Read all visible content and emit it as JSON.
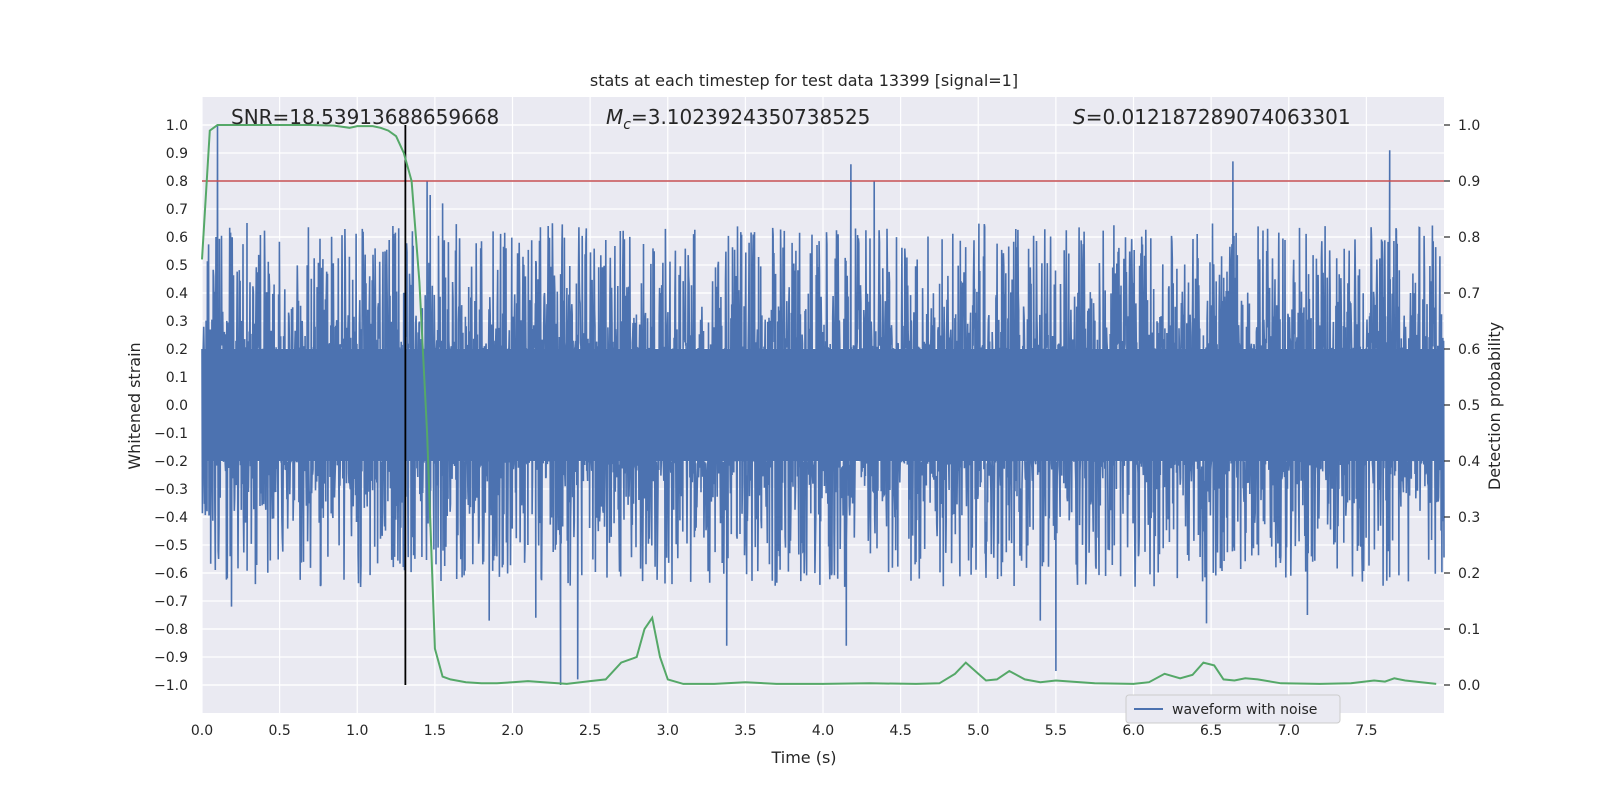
{
  "chart_data": {
    "type": "line",
    "title": "stats at each timestep for test data 13399 [signal=1]",
    "xlabel": "Time (s)",
    "ylabel": "Whitened strain",
    "ylabel_right": "Detection probability",
    "xlim": [
      0.0,
      8.0
    ],
    "ylim": [
      -1.1,
      1.1
    ],
    "ylim_right": [
      -0.05,
      1.05
    ],
    "x_ticks": [
      "0.0",
      "0.5",
      "1.0",
      "1.5",
      "2.0",
      "2.5",
      "3.0",
      "3.5",
      "4.0",
      "4.5",
      "5.0",
      "5.5",
      "6.0",
      "6.5",
      "7.0",
      "7.5"
    ],
    "x_tick_values": [
      0.0,
      0.5,
      1.0,
      1.5,
      2.0,
      2.5,
      3.0,
      3.5,
      4.0,
      4.5,
      5.0,
      5.5,
      6.0,
      6.5,
      7.0,
      7.5
    ],
    "y_ticks": [
      "1.0",
      "0.9",
      "0.8",
      "0.7",
      "0.6",
      "0.5",
      "0.4",
      "0.3",
      "0.2",
      "0.1",
      "0.0",
      "−0.1",
      "−0.2",
      "−0.3",
      "−0.4",
      "−0.5",
      "−0.6",
      "−0.7",
      "−0.8",
      "−0.9",
      "−1.0"
    ],
    "y_tick_values": [
      1.0,
      0.9,
      0.8,
      0.7,
      0.6,
      0.5,
      0.4,
      0.3,
      0.2,
      0.1,
      0.0,
      -0.1,
      -0.2,
      -0.3,
      -0.4,
      -0.5,
      -0.6,
      -0.7,
      -0.8,
      -0.9,
      -1.0
    ],
    "y_right_ticks": [
      "1.0",
      "0.9",
      "0.8",
      "0.7",
      "0.6",
      "0.5",
      "0.4",
      "0.3",
      "0.2",
      "0.1",
      "0.0"
    ],
    "y_right_tick_values": [
      1.0,
      0.9,
      0.8,
      0.7,
      0.6,
      0.5,
      0.4,
      0.3,
      0.2,
      0.1,
      0.0
    ],
    "grid": true,
    "legend": {
      "entries": [
        "waveform with noise"
      ],
      "placement": "lower-right"
    },
    "annotations": {
      "snr": "SNR=18.53913688659668",
      "mc_symbol": "M",
      "mc_sub": "c",
      "mc_value": "=3.1023924350738525",
      "s_symbol": "S",
      "s_value": "=0.012187289074063301"
    },
    "threshold_line": {
      "y_right": 0.9,
      "color": "#c44e52"
    },
    "vertical_marker": {
      "x": 1.31,
      "y_range": [
        -1.0,
        1.0
      ],
      "color": "#000000"
    },
    "series": [
      {
        "name": "waveform with noise",
        "axis": "left",
        "color": "#4c72b0",
        "description_envelope": {
          "x_range": [
            0.0,
            8.0
          ],
          "typical_high": 0.55,
          "typical_low": -0.5
        },
        "peaks": [
          {
            "x": 0.1,
            "y": 1.0
          },
          {
            "x": 0.09,
            "y": 0.6
          },
          {
            "x": 0.29,
            "y": 0.65
          },
          {
            "x": 0.19,
            "y": -0.72
          },
          {
            "x": 1.45,
            "y": 0.8
          },
          {
            "x": 1.47,
            "y": 0.75
          },
          {
            "x": 1.55,
            "y": 0.72
          },
          {
            "x": 1.85,
            "y": -0.77
          },
          {
            "x": 2.15,
            "y": -0.76
          },
          {
            "x": 2.31,
            "y": -1.0
          },
          {
            "x": 2.42,
            "y": -0.98
          },
          {
            "x": 3.38,
            "y": -0.86
          },
          {
            "x": 4.18,
            "y": 0.86
          },
          {
            "x": 4.15,
            "y": -0.86
          },
          {
            "x": 4.33,
            "y": 0.8
          },
          {
            "x": 5.5,
            "y": -0.95
          },
          {
            "x": 5.4,
            "y": -0.77
          },
          {
            "x": 6.64,
            "y": 0.87
          },
          {
            "x": 6.47,
            "y": -0.78
          },
          {
            "x": 7.65,
            "y": 0.91
          },
          {
            "x": 7.12,
            "y": -0.75
          }
        ]
      },
      {
        "name": "",
        "axis": "right",
        "color": "#55a868",
        "x": [
          0.0,
          0.05,
          0.1,
          0.2,
          0.3,
          0.5,
          0.7,
          0.85,
          0.95,
          1.0,
          1.1,
          1.15,
          1.2,
          1.25,
          1.3,
          1.35,
          1.4,
          1.45,
          1.5,
          1.55,
          1.6,
          1.7,
          1.8,
          1.9,
          2.0,
          2.1,
          2.2,
          2.35,
          2.5,
          2.6,
          2.7,
          2.8,
          2.85,
          2.9,
          2.95,
          3.0,
          3.1,
          3.3,
          3.5,
          3.7,
          4.0,
          4.3,
          4.6,
          4.75,
          4.85,
          4.92,
          5.0,
          5.05,
          5.12,
          5.2,
          5.3,
          5.4,
          5.5,
          5.6,
          5.75,
          6.0,
          6.1,
          6.2,
          6.3,
          6.38,
          6.45,
          6.52,
          6.58,
          6.65,
          6.72,
          6.8,
          6.95,
          7.2,
          7.4,
          7.55,
          7.62,
          7.68,
          7.75,
          7.95
        ],
        "values": [
          0.76,
          0.99,
          1.0,
          1.0,
          1.0,
          1.0,
          1.0,
          0.999,
          0.995,
          0.998,
          0.998,
          0.995,
          0.99,
          0.98,
          0.95,
          0.9,
          0.72,
          0.45,
          0.065,
          0.015,
          0.01,
          0.005,
          0.003,
          0.003,
          0.005,
          0.007,
          0.005,
          0.002,
          0.007,
          0.01,
          0.04,
          0.05,
          0.1,
          0.12,
          0.05,
          0.01,
          0.002,
          0.002,
          0.005,
          0.002,
          0.002,
          0.003,
          0.002,
          0.003,
          0.02,
          0.04,
          0.02,
          0.008,
          0.01,
          0.025,
          0.01,
          0.005,
          0.008,
          0.006,
          0.003,
          0.002,
          0.005,
          0.02,
          0.012,
          0.018,
          0.04,
          0.035,
          0.01,
          0.008,
          0.012,
          0.01,
          0.003,
          0.002,
          0.003,
          0.008,
          0.006,
          0.012,
          0.008,
          0.002
        ]
      }
    ]
  }
}
